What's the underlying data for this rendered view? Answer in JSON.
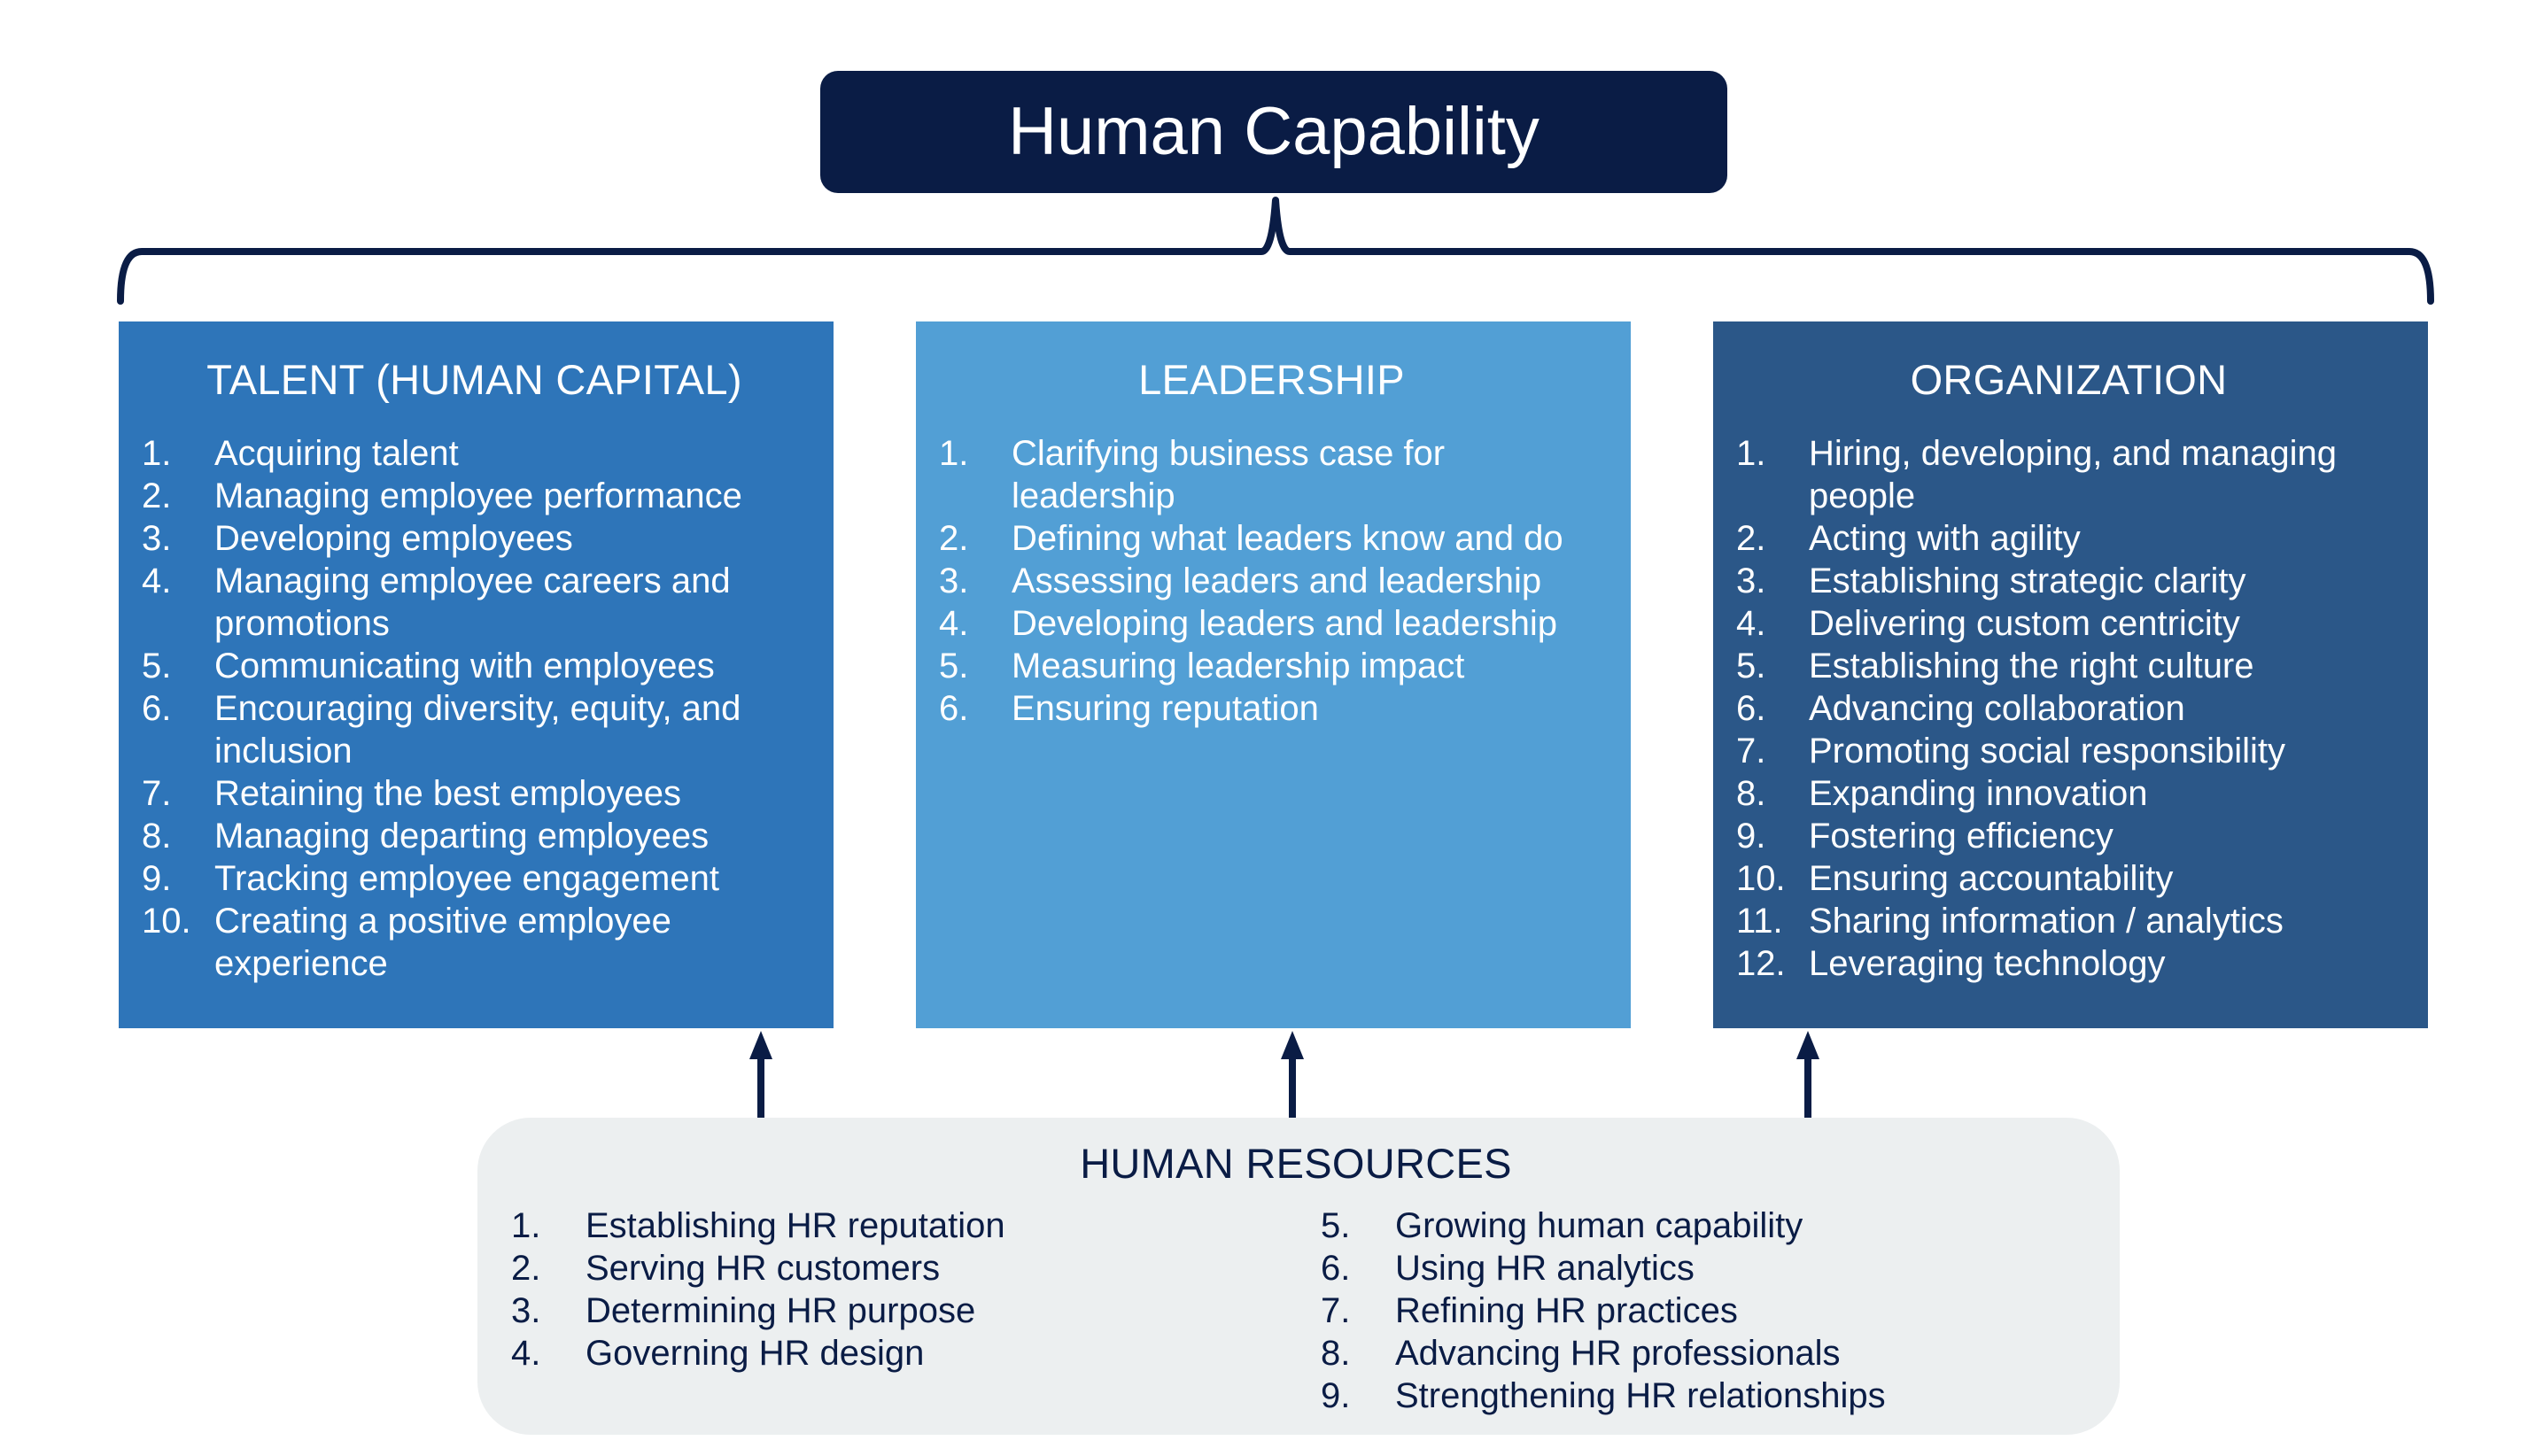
{
  "title": "Human Capability",
  "colors": {
    "navy": "#0a1c45",
    "talent": "#2e75b9",
    "leadership": "#529fd5",
    "organization": "#2b5788",
    "hr_background": "#eceff0"
  },
  "pillars": {
    "talent": {
      "heading": "TALENT (HUMAN CAPITAL)",
      "items": [
        {
          "num": "1.",
          "text": "Acquiring talent"
        },
        {
          "num": "2.",
          "text": "Managing employee performance"
        },
        {
          "num": "3.",
          "text": "Developing employees"
        },
        {
          "num": "4.",
          "text": "Managing employee careers and promotions"
        },
        {
          "num": "5.",
          "text": "Communicating with employees"
        },
        {
          "num": "6.",
          "text": "Encouraging diversity, equity, and inclusion"
        },
        {
          "num": "7.",
          "text": "Retaining the best employees"
        },
        {
          "num": "8.",
          "text": "Managing departing employees"
        },
        {
          "num": "9.",
          "text": "Tracking employee engagement"
        },
        {
          "num": "10.",
          "text": "Creating a positive employee experience"
        }
      ]
    },
    "leadership": {
      "heading": "LEADERSHIP",
      "items": [
        {
          "num": "1.",
          "text": "Clarifying business case for leadership"
        },
        {
          "num": "2.",
          "text": "Defining what leaders know and do"
        },
        {
          "num": "3.",
          "text": "Assessing leaders and leadership"
        },
        {
          "num": "4.",
          "text": "Developing leaders and leadership"
        },
        {
          "num": "5.",
          "text": "Measuring leadership impact"
        },
        {
          "num": "6.",
          "text": "Ensuring reputation"
        }
      ]
    },
    "organization": {
      "heading": "ORGANIZATION",
      "items": [
        {
          "num": "1.",
          "text": "Hiring, developing, and managing people"
        },
        {
          "num": "2.",
          "text": "Acting with agility"
        },
        {
          "num": "3.",
          "text": "Establishing strategic clarity"
        },
        {
          "num": "4.",
          "text": "Delivering custom centricity"
        },
        {
          "num": "5.",
          "text": "Establishing the right culture"
        },
        {
          "num": "6.",
          "text": "Advancing collaboration"
        },
        {
          "num": "7.",
          "text": "Promoting social responsibility"
        },
        {
          "num": "8.",
          "text": "Expanding innovation"
        },
        {
          "num": "9.",
          "text": "Fostering efficiency"
        },
        {
          "num": "10.",
          "text": "Ensuring accountability"
        },
        {
          "num": "11.",
          "text": "Sharing information / analytics"
        },
        {
          "num": "12.",
          "text": "Leveraging technology"
        }
      ]
    }
  },
  "hr": {
    "heading": "HUMAN RESOURCES",
    "left_items": [
      {
        "num": "1.",
        "text": "Establishing HR reputation"
      },
      {
        "num": "2.",
        "text": "Serving HR customers"
      },
      {
        "num": "3.",
        "text": "Determining HR purpose"
      },
      {
        "num": "4.",
        "text": "Governing HR design"
      }
    ],
    "right_items": [
      {
        "num": "5.",
        "text": "Growing human capability"
      },
      {
        "num": "6.",
        "text": "Using HR analytics"
      },
      {
        "num": "7.",
        "text": "Refining HR practices"
      },
      {
        "num": "8.",
        "text": "Advancing HR professionals"
      },
      {
        "num": "9.",
        "text": "Strengthening HR relationships"
      }
    ]
  }
}
